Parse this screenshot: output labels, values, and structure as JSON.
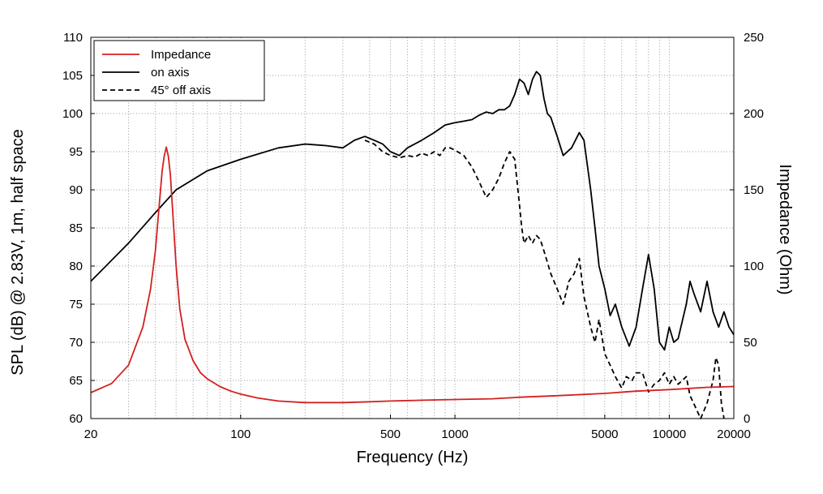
{
  "chart_data": {
    "type": "line",
    "xlabel": "Frequency (Hz)",
    "ylabel": "SPL (dB) @ 2.83V, 1m, half space",
    "y2label": "Impedance (Ohm)",
    "xscale": "log",
    "xlim": [
      20,
      20000
    ],
    "ylim": [
      60,
      110
    ],
    "y2lim": [
      0,
      250
    ],
    "xticks": [
      20,
      100,
      500,
      1000,
      5000,
      10000,
      20000
    ],
    "xtick_labels": [
      "20",
      "100",
      "500",
      "1000",
      "5000",
      "10000",
      "20000"
    ],
    "yticks": [
      60,
      65,
      70,
      75,
      80,
      85,
      90,
      95,
      100,
      105,
      110
    ],
    "ytick_labels": [
      "60",
      "65",
      "70",
      "75",
      "80",
      "85",
      "90",
      "95",
      "100",
      "105",
      "110"
    ],
    "y2ticks": [
      0,
      50,
      100,
      150,
      200,
      250
    ],
    "y2tick_labels": [
      "0",
      "50",
      "100",
      "150",
      "200",
      "250"
    ],
    "grid": true,
    "legend_position": "top-left",
    "series": [
      {
        "name": "Impedance",
        "axis": "right",
        "color": "#d42020",
        "style": "solid",
        "x": [
          20,
          25,
          30,
          35,
          38,
          40,
          42,
          43,
          44,
          45,
          46,
          47,
          48,
          50,
          52,
          55,
          60,
          65,
          70,
          80,
          90,
          100,
          120,
          150,
          200,
          300,
          400,
          500,
          700,
          1000,
          1500,
          2000,
          3000,
          5000,
          7000,
          10000,
          15000,
          20000
        ],
        "y": [
          17,
          23,
          35,
          60,
          85,
          110,
          145,
          162,
          172,
          178,
          172,
          160,
          140,
          100,
          72,
          52,
          38,
          30,
          26,
          21,
          18,
          16,
          13.5,
          11.5,
          10.5,
          10.5,
          11,
          11.5,
          12,
          12.5,
          13,
          14,
          15,
          16.5,
          18,
          19,
          20.5,
          21
        ]
      },
      {
        "name": "on axis",
        "axis": "left",
        "color": "#000000",
        "style": "solid",
        "x": [
          20,
          30,
          40,
          50,
          70,
          100,
          150,
          200,
          250,
          300,
          340,
          380,
          420,
          460,
          500,
          550,
          600,
          700,
          800,
          900,
          1000,
          1100,
          1200,
          1300,
          1400,
          1500,
          1600,
          1700,
          1800,
          1900,
          2000,
          2100,
          2200,
          2300,
          2400,
          2500,
          2600,
          2700,
          2800,
          3000,
          3200,
          3500,
          3800,
          4000,
          4300,
          4500,
          4700,
          5000,
          5300,
          5600,
          6000,
          6500,
          7000,
          7500,
          8000,
          8500,
          9000,
          9500,
          10000,
          10500,
          11000,
          12000,
          12500,
          13000,
          14000,
          15000,
          15500,
          16000,
          17000,
          18000,
          19000,
          20000
        ],
        "y": [
          78,
          83,
          87,
          90,
          92.5,
          94,
          95.5,
          96,
          95.8,
          95.5,
          96.5,
          97,
          96.5,
          96,
          95,
          94.5,
          95.5,
          96.5,
          97.5,
          98.5,
          98.8,
          99,
          99.2,
          99.8,
          100.2,
          100,
          100.5,
          100.5,
          101,
          102.5,
          104.5,
          104,
          102.5,
          104.5,
          105.5,
          105,
          102,
          100,
          99.5,
          97,
          94.5,
          95.5,
          97.5,
          96.5,
          90,
          85,
          80,
          77,
          73.5,
          75,
          72,
          69.5,
          72,
          77,
          81.5,
          77,
          70,
          69,
          72,
          70,
          70.5,
          75,
          78,
          76.5,
          74,
          78,
          76,
          74,
          72,
          74,
          72,
          71
        ]
      },
      {
        "name": "45° off axis",
        "axis": "left",
        "color": "#000000",
        "style": "dashed",
        "x": [
          380,
          420,
          460,
          500,
          550,
          600,
          650,
          700,
          750,
          800,
          850,
          900,
          950,
          1000,
          1100,
          1200,
          1300,
          1400,
          1500,
          1600,
          1700,
          1800,
          1900,
          2000,
          2050,
          2100,
          2200,
          2300,
          2400,
          2500,
          2600,
          2800,
          3000,
          3200,
          3400,
          3600,
          3800,
          4000,
          4300,
          4500,
          4700,
          5000,
          5300,
          5600,
          6000,
          6300,
          6700,
          7000,
          7500,
          8000,
          8500,
          9000,
          9500,
          10000,
          10500,
          11000,
          12000,
          12500,
          13000,
          14000,
          15000,
          16000,
          16500,
          17000,
          17500,
          18000
        ],
        "y": [
          96.5,
          96,
          95,
          94.5,
          94.2,
          94.5,
          94.3,
          94.8,
          94.5,
          95,
          94.5,
          95.5,
          95.5,
          95.2,
          94.5,
          93,
          91,
          89,
          90,
          91.5,
          93.5,
          95,
          94,
          88,
          85,
          83,
          84,
          83,
          84,
          83.5,
          82,
          79,
          77,
          75,
          78,
          79,
          81,
          76,
          72,
          70,
          73,
          68.5,
          67,
          65.5,
          64,
          65.5,
          65,
          66,
          66,
          63.5,
          64.5,
          65,
          66,
          64.5,
          65.5,
          64.5,
          65.5,
          63,
          62,
          60,
          62,
          65,
          68,
          67,
          62,
          60
        ]
      }
    ]
  },
  "colors": {
    "impedance": "#d42020",
    "on_axis": "#000000",
    "off_axis": "#000000",
    "grid": "#9a9a9a"
  }
}
